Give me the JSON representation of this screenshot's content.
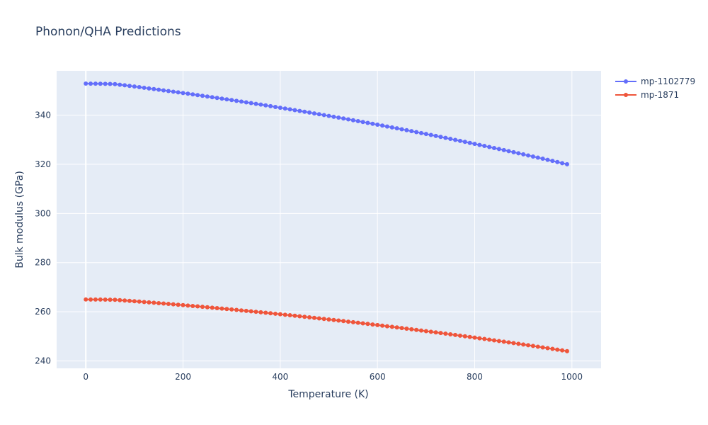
{
  "chart_data": {
    "type": "line",
    "title": "Phonon/QHA Predictions",
    "xlabel": "Temperature (K)",
    "ylabel": "Bulk modulus (GPa)",
    "xlim": [
      -60,
      1060
    ],
    "ylim": [
      237,
      358
    ],
    "xticks": [
      0,
      200,
      400,
      600,
      800,
      1000
    ],
    "yticks": [
      240,
      260,
      280,
      300,
      320,
      340
    ],
    "grid": true,
    "legend_position": "top-right",
    "plot_bg": "#e5ecf6",
    "series": [
      {
        "name": "mp-1102779",
        "color": "#636efa",
        "x_start": 0,
        "x_end": 990,
        "x_step": 10,
        "y_start": 352.8,
        "y_end": 320.0,
        "y_mid": 343.0,
        "flat_until": 60
      },
      {
        "name": "mp-1871",
        "color": "#ef553b",
        "x_start": 0,
        "x_end": 990,
        "x_step": 10,
        "y_start": 265.0,
        "y_end": 244.0,
        "y_mid": 259.0,
        "flat_until": 60
      }
    ]
  }
}
